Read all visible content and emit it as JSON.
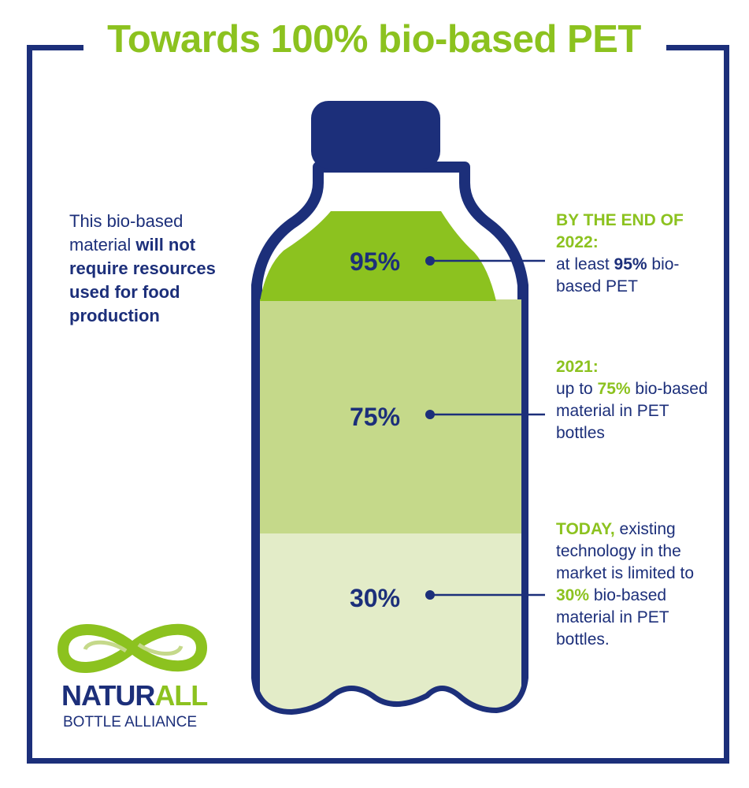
{
  "title": "Towards 100% bio-based PET",
  "left_note": {
    "part1": "This bio-based material ",
    "bold": "will not require resources used for food production"
  },
  "levels": [
    {
      "percent": "95%",
      "value": 95
    },
    {
      "percent": "75%",
      "value": 75
    },
    {
      "percent": "30%",
      "value": 30
    }
  ],
  "callouts": {
    "c2022": {
      "heading": "BY THE END OF 2022:",
      "pre": "at least ",
      "highlight": "95%",
      "post": " bio-based PET"
    },
    "c2021": {
      "heading": "2021:",
      "pre": "up to ",
      "highlight": "75%",
      "post": " bio-based material in PET bottles"
    },
    "today": {
      "heading": "TODAY,",
      "pre": " existing technology in the market is limited to ",
      "highlight": "30%",
      "post": " bio-based material in PET bottles."
    }
  },
  "logo": {
    "name_part1": "NATUR",
    "name_part2": "ALL",
    "subtitle": "BOTTLE ALLIANCE"
  },
  "colors": {
    "navy": "#1c2f7a",
    "green_dark": "#8cc21f",
    "green_mid": "#c5d98a",
    "green_light": "#e3ecc8"
  }
}
